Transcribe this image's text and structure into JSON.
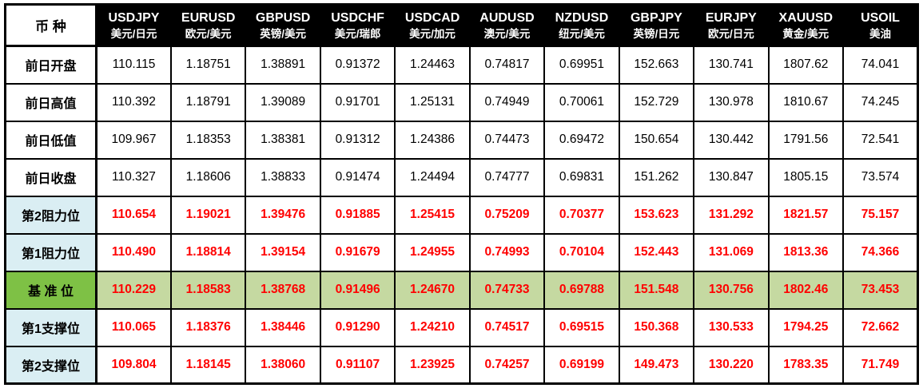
{
  "table": {
    "corner_label": "币 种",
    "columns": [
      {
        "code": "USDJPY",
        "name": "美元/日元"
      },
      {
        "code": "EURUSD",
        "name": "欧元/美元"
      },
      {
        "code": "GBPUSD",
        "name": "英镑/美元"
      },
      {
        "code": "USDCHF",
        "name": "美元/瑞郎"
      },
      {
        "code": "USDCAD",
        "name": "美元/加元"
      },
      {
        "code": "AUDUSD",
        "name": "澳元/美元"
      },
      {
        "code": "NZDUSD",
        "name": "纽元/美元"
      },
      {
        "code": "GBPJPY",
        "name": "英镑/日元"
      },
      {
        "code": "EURJPY",
        "name": "欧元/日元"
      },
      {
        "code": "XAUUSD",
        "name": "黄金/美元"
      },
      {
        "code": "USOIL",
        "name": "美油"
      }
    ],
    "rows": [
      {
        "label": "前日开盘",
        "style": "plain",
        "values": [
          "110.115",
          "1.18751",
          "1.38891",
          "0.91372",
          "1.24463",
          "0.74817",
          "0.69951",
          "152.663",
          "130.741",
          "1807.62",
          "74.041"
        ]
      },
      {
        "label": "前日高值",
        "style": "plain",
        "values": [
          "110.392",
          "1.18791",
          "1.39089",
          "0.91701",
          "1.25131",
          "0.74949",
          "0.70061",
          "152.729",
          "130.978",
          "1810.67",
          "74.245"
        ]
      },
      {
        "label": "前日低值",
        "style": "plain",
        "values": [
          "109.967",
          "1.18353",
          "1.38381",
          "0.91312",
          "1.24386",
          "0.74473",
          "0.69472",
          "150.654",
          "130.442",
          "1791.56",
          "72.541"
        ]
      },
      {
        "label": "前日收盘",
        "style": "plain",
        "values": [
          "110.327",
          "1.18606",
          "1.38833",
          "0.91474",
          "1.24494",
          "0.74777",
          "0.69831",
          "151.262",
          "130.847",
          "1805.15",
          "73.574"
        ]
      },
      {
        "label": "第2阻力位",
        "style": "resistance",
        "values": [
          "110.654",
          "1.19021",
          "1.39476",
          "0.91885",
          "1.25415",
          "0.75209",
          "0.70377",
          "153.623",
          "131.292",
          "1821.57",
          "75.157"
        ]
      },
      {
        "label": "第1阻力位",
        "style": "resistance",
        "values": [
          "110.490",
          "1.18814",
          "1.39154",
          "0.91679",
          "1.24955",
          "0.74993",
          "0.70104",
          "152.443",
          "131.069",
          "1813.36",
          "74.366"
        ]
      },
      {
        "label": "基 准 位",
        "style": "pivot",
        "values": [
          "110.229",
          "1.18583",
          "1.38768",
          "0.91496",
          "1.24670",
          "0.74733",
          "0.69788",
          "151.548",
          "130.756",
          "1802.46",
          "73.453"
        ]
      },
      {
        "label": "第1支撑位",
        "style": "support",
        "values": [
          "110.065",
          "1.18376",
          "1.38446",
          "0.91290",
          "1.24210",
          "0.74517",
          "0.69515",
          "150.368",
          "130.533",
          "1794.25",
          "72.662"
        ]
      },
      {
        "label": "第2支撑位",
        "style": "support",
        "values": [
          "109.804",
          "1.18145",
          "1.38060",
          "0.91107",
          "1.23925",
          "0.74257",
          "0.69199",
          "149.473",
          "130.220",
          "1783.35",
          "71.749"
        ]
      }
    ],
    "colors": {
      "header_bg": "#000000",
      "header_text": "#FFFFFF",
      "border": "#000000",
      "label_blue_bg": "#DAEEF3",
      "pivot_label_bg": "#7EC145",
      "pivot_value_bg": "#C5D9A1",
      "value_red": "#FF0000"
    }
  }
}
